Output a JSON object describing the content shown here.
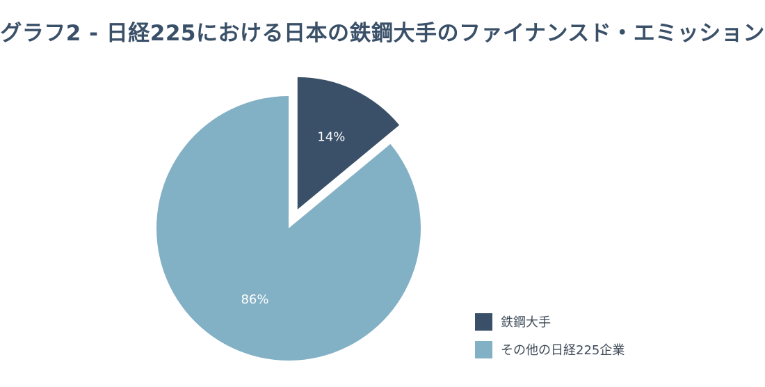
{
  "chart_data": {
    "type": "pie",
    "title": "グラフ2 - 日経225における日本の鉄鋼大手のファイナンスド・エミッション",
    "categories": [
      "鉄鋼大手",
      "その他の日経225企業"
    ],
    "values": [
      14,
      86
    ],
    "labels": [
      "14%",
      "86%"
    ],
    "colors": [
      "#3a5068",
      "#82b0c5"
    ],
    "exploded": [
      true,
      false
    ],
    "legend_position": "bottom-right",
    "label_color": "#ffffff"
  }
}
